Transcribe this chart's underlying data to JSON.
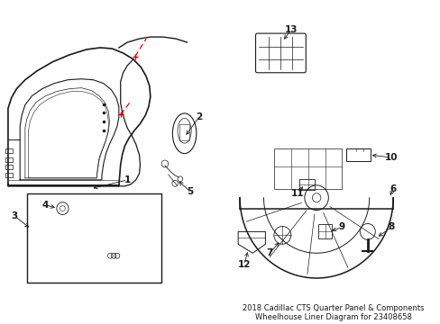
{
  "bg_color": "#ffffff",
  "lc": "#1a1a1a",
  "rc": "#dd0000",
  "title_line1": "2018 Cadillac CTS Quarter Panel & Components",
  "title_line2": "Wheelhouse Liner Diagram for 23408658",
  "figw": 4.89,
  "figh": 3.6,
  "dpi": 100,
  "label_fontsize": 7.5,
  "title_fontsize": 6.0
}
